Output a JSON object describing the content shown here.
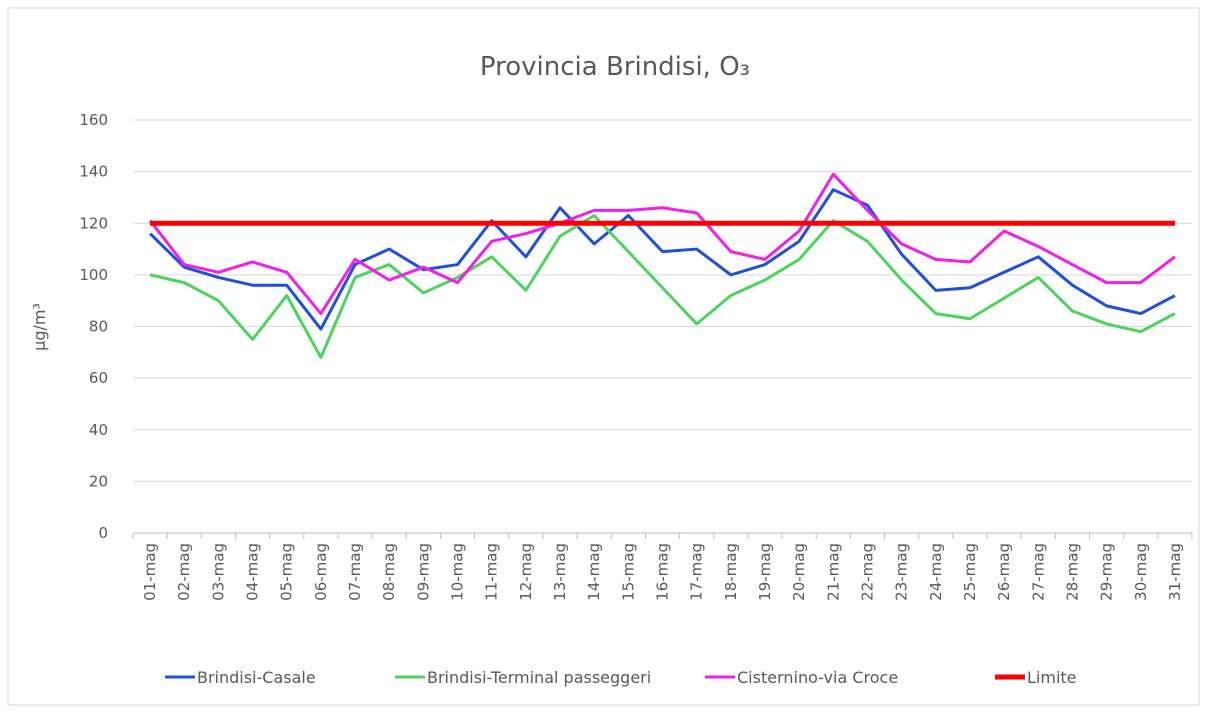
{
  "chart_data": {
    "type": "line",
    "title": "Provincia Brindisi, O₃",
    "y_label": "µg/m³",
    "categories": [
      "01-mag",
      "02-mag",
      "03-mag",
      "04-mag",
      "05-mag",
      "06-mag",
      "07-mag",
      "08-mag",
      "09-mag",
      "10-mag",
      "11-mag",
      "12-mag",
      "13-mag",
      "14-mag",
      "15-mag",
      "16-mag",
      "17-mag",
      "18-mag",
      "19-mag",
      "20-mag",
      "21-mag",
      "22-mag",
      "23-mag",
      "24-mag",
      "25-mag",
      "26-mag",
      "27-mag",
      "28-mag",
      "29-mag",
      "30-mag",
      "31-mag"
    ],
    "series": [
      {
        "name": "Brindisi-Casale",
        "color": "#1f4fe0",
        "values": [
          116,
          103,
          99,
          96,
          96,
          79,
          104,
          110,
          102,
          104,
          121,
          107,
          126,
          112,
          123,
          109,
          110,
          100,
          104,
          113,
          133,
          127,
          108,
          94,
          95,
          101,
          107,
          96,
          88,
          85,
          92
        ]
      },
      {
        "name": "Brindisi-Terminal passeggeri",
        "color": "#4cd45c",
        "values": [
          100,
          97,
          90,
          75,
          92,
          68,
          99,
          104,
          93,
          99,
          107,
          94,
          115,
          123,
          109,
          95,
          81,
          92,
          98,
          106,
          121,
          113,
          98,
          85,
          83,
          91,
          99,
          86,
          81,
          78,
          85
        ]
      },
      {
        "name": "Cisternino-via Croce",
        "color": "#f020e8",
        "values": [
          121,
          104,
          101,
          105,
          101,
          85,
          106,
          98,
          103,
          97,
          113,
          116,
          120,
          125,
          125,
          126,
          124,
          109,
          106,
          117,
          139,
          125,
          112,
          106,
          105,
          117,
          111,
          104,
          97,
          97,
          107
        ]
      },
      {
        "name": "Limite",
        "color": "#ff0000",
        "values": [
          120,
          120,
          120,
          120,
          120,
          120,
          120,
          120,
          120,
          120,
          120,
          120,
          120,
          120,
          120,
          120,
          120,
          120,
          120,
          120,
          120,
          120,
          120,
          120,
          120,
          120,
          120,
          120,
          120,
          120,
          120
        ]
      }
    ],
    "ylim": [
      0,
      160
    ],
    "yticks": [
      0,
      20,
      40,
      60,
      80,
      100,
      120,
      140,
      160
    ],
    "grid": true
  }
}
